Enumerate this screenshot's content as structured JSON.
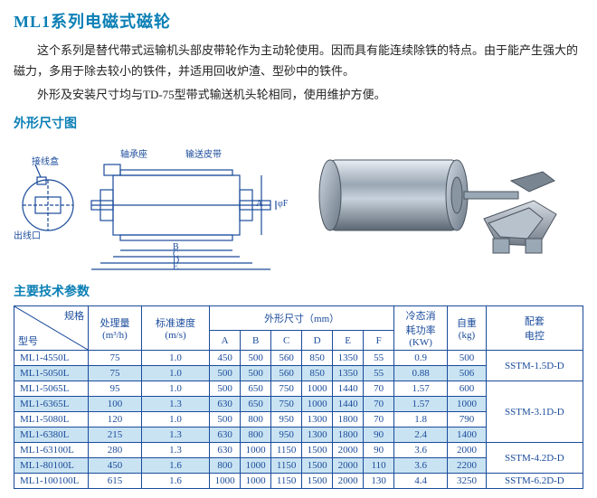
{
  "title": "ML1系列电磁式磁轮",
  "paragraphs": [
    "这个系列是替代带式运输机头部皮带轮作为主动轮使用。因而具有能连续除铁的特点。由于能产生强大的磁力，多用于除去较小的铁件，并适用回收炉渣、型砂中的铁件。",
    "外形及安装尺寸均与TD-75型带式输送机头轮相同，使用维护方便。"
  ],
  "section_diagram_title": "外形尺寸图",
  "section_params_title": "主要技术参数",
  "diagram_labels": {
    "bearing_seat": "轴承座",
    "belt": "输送皮带",
    "jbox": "接线盒",
    "outlet": "出线口",
    "A": "A",
    "B": "B",
    "C": "C",
    "D": "D",
    "E": "E",
    "F": "φF"
  },
  "table": {
    "headers": {
      "spec": "规格",
      "model": "型号",
      "throughput": "处理量\n(m³/h)",
      "speed": "标准速度\n(m/s)",
      "dims_group": "外形尺寸（mm）",
      "dims": [
        "A",
        "B",
        "C",
        "D",
        "E",
        "F"
      ],
      "cooling": "冷态消\n耗功率\n(KW)",
      "weight": "自重\n(kg)",
      "motor": "配套\n电控"
    },
    "rows": [
      {
        "model": "ML1-4550L",
        "tp": "75",
        "sp": "1.0",
        "A": "450",
        "B": "500",
        "C": "560",
        "D": "850",
        "E": "1350",
        "F": "55",
        "kw": "0.9",
        "wt": "500"
      },
      {
        "model": "ML1-5050L",
        "tp": "75",
        "sp": "1.0",
        "A": "500",
        "B": "500",
        "C": "560",
        "D": "850",
        "E": "1350",
        "F": "55",
        "kw": "0.88",
        "wt": "506"
      },
      {
        "model": "ML1-5065L",
        "tp": "95",
        "sp": "1.0",
        "A": "500",
        "B": "650",
        "C": "750",
        "D": "1000",
        "E": "1440",
        "F": "70",
        "kw": "1.57",
        "wt": "600"
      },
      {
        "model": "ML1-6365L",
        "tp": "100",
        "sp": "1.3",
        "A": "630",
        "B": "650",
        "C": "750",
        "D": "1000",
        "E": "1440",
        "F": "70",
        "kw": "1.57",
        "wt": "1000"
      },
      {
        "model": "ML1-5080L",
        "tp": "120",
        "sp": "1.0",
        "A": "500",
        "B": "800",
        "C": "950",
        "D": "1300",
        "E": "1800",
        "F": "70",
        "kw": "1.8",
        "wt": "790"
      },
      {
        "model": "ML1-6380L",
        "tp": "215",
        "sp": "1.3",
        "A": "630",
        "B": "800",
        "C": "950",
        "D": "1300",
        "E": "1800",
        "F": "90",
        "kw": "2.4",
        "wt": "1400"
      },
      {
        "model": "ML1-63100L",
        "tp": "280",
        "sp": "1.3",
        "A": "630",
        "B": "1000",
        "C": "1150",
        "D": "1500",
        "E": "2000",
        "F": "90",
        "kw": "3.6",
        "wt": "2000"
      },
      {
        "model": "ML1-80100L",
        "tp": "450",
        "sp": "1.6",
        "A": "800",
        "B": "1000",
        "C": "1150",
        "D": "1500",
        "E": "2000",
        "F": "110",
        "kw": "3.6",
        "wt": "2200"
      },
      {
        "model": "ML1-100100L",
        "tp": "615",
        "sp": "1.6",
        "A": "1000",
        "B": "1000",
        "C": "1150",
        "D": "1500",
        "E": "2000",
        "F": "130",
        "kw": "4.4",
        "wt": "3250"
      }
    ],
    "motor_groups": [
      {
        "label": "SSTM-1.5D-D",
        "span": 2
      },
      {
        "label": "SSTM-3.1D-D",
        "span": 4
      },
      {
        "label": "SSTM-4.2D-D",
        "span": 2
      },
      {
        "label": "SSTM-6.2D-D",
        "span": 1
      }
    ]
  },
  "colors": {
    "title": "#0b7fb5",
    "border": "#1a4b9b",
    "alt_row": "#c9e3f2",
    "text": "#222"
  }
}
